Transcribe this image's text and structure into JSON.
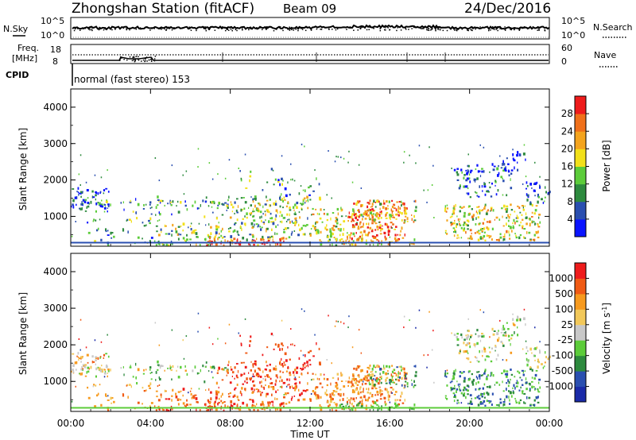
{
  "header": {
    "station": "Zhongshan Station (fitACF)",
    "beam": "Beam 09",
    "date": "24/Dec/2016"
  },
  "noise_panel": {
    "left_label": "N.Sky",
    "right_label": "N.Search",
    "ticks_left": [
      "10^5",
      "10^0"
    ],
    "ticks_right": [
      "10^5",
      "10^0"
    ]
  },
  "freq_panel": {
    "left_label_1": "Freq.",
    "left_label_2": "[MHz]",
    "ticks_left": [
      "18",
      "8"
    ],
    "right_label": "Nave",
    "ticks_right": [
      "60",
      "0"
    ]
  },
  "cpid": {
    "label": "CPID",
    "value": "normal (fast stereo) 153"
  },
  "colors": {
    "power_scale": [
      "#0a14ff",
      "#2a4fb0",
      "#2d8a3e",
      "#5ccc3a",
      "#f2e01a",
      "#f4a41e",
      "#f0701a",
      "#ee1b1b"
    ],
    "velocity_scale": [
      "#ee1b1b",
      "#f05a14",
      "#f79a1e",
      "#f2c85a",
      "#c8c8c8",
      "#5ccc3a",
      "#2d8a3e",
      "#2a4fb0",
      "#1a2aa8"
    ]
  },
  "chart_data": [
    {
      "type": "heatmap",
      "name": "power",
      "ylabel": "Slant Range [km]",
      "ylim": [
        180,
        4500
      ],
      "yticks": [
        "1000",
        "2000",
        "3000",
        "4000"
      ],
      "xticks": [
        "00:00",
        "04:00",
        "08:00",
        "12:00",
        "16:00",
        "20:00",
        "00:00"
      ],
      "colorbar_label": "Power [dB]",
      "colorbar_ticks": [
        "4",
        "8",
        "12",
        "16",
        "20",
        "24",
        "28"
      ],
      "colorbar_range": [
        0,
        32
      ]
    },
    {
      "type": "heatmap",
      "name": "velocity",
      "ylabel": "Slant Range [km]",
      "ylim": [
        180,
        4500
      ],
      "yticks": [
        "1000",
        "2000",
        "3000",
        "4000"
      ],
      "xticks": [
        "00:00",
        "04:00",
        "08:00",
        "12:00",
        "16:00",
        "20:00",
        "00:00"
      ],
      "xlabel": "Time UT",
      "colorbar_label": "Velocity [m s",
      "colorbar_label_sup": "-1",
      "colorbar_label_end": "]",
      "colorbar_ticks": [
        "1000",
        "500",
        "100",
        "25",
        "-25",
        "-100",
        "-500",
        "-1000"
      ]
    }
  ]
}
